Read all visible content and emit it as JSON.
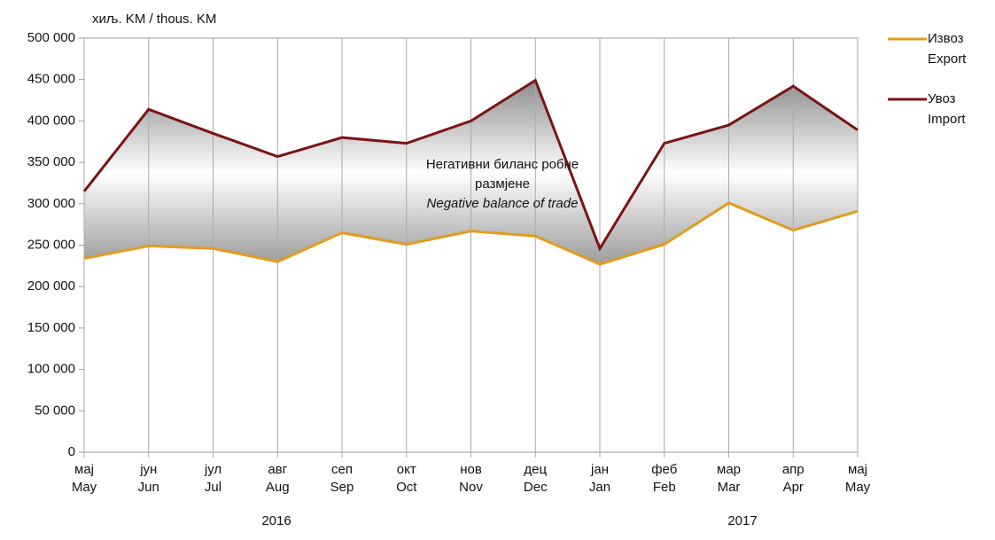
{
  "chart_data": {
    "type": "line",
    "y_unit": "хиљ. KM / thous. KM",
    "categories": [
      [
        "мај",
        "May"
      ],
      [
        "јун",
        "Jun"
      ],
      [
        "јул",
        "Jul"
      ],
      [
        "авг",
        "Aug"
      ],
      [
        "сеп",
        "Sep"
      ],
      [
        "окт",
        "Oct"
      ],
      [
        "нов",
        "Nov"
      ],
      [
        "дец",
        "Dec"
      ],
      [
        "јан",
        "Jan"
      ],
      [
        "феб",
        "Feb"
      ],
      [
        "мар",
        "Mar"
      ],
      [
        "апр",
        "Apr"
      ],
      [
        "мај",
        "May"
      ]
    ],
    "years": [
      "2016",
      "2017"
    ],
    "series": [
      {
        "name": [
          "Извоз",
          "Export"
        ],
        "color": "#e39b1e",
        "values": [
          234000,
          249000,
          246000,
          230000,
          265000,
          251000,
          267000,
          261000,
          227000,
          251000,
          301000,
          268000,
          291000
        ]
      },
      {
        "name": [
          "Увоз",
          "Import"
        ],
        "color": "#7a1414",
        "values": [
          315000,
          414000,
          385000,
          357000,
          380000,
          373000,
          400000,
          449000,
          246000,
          373000,
          395000,
          442000,
          389000
        ]
      }
    ],
    "annotation": [
      "Негативни биланс робне",
      "размјене",
      "Negative balance of trade"
    ],
    "ylim": [
      0,
      500000
    ],
    "yticks": [
      0,
      {
        "value": 50000,
        "label": "50 000"
      },
      {
        "value": 100000,
        "label": "100 000"
      },
      {
        "value": 150000,
        "label": "150 000"
      },
      {
        "value": 200000,
        "label": "200 000"
      },
      {
        "value": 250000,
        "label": "250 000"
      },
      {
        "value": 300000,
        "label": "300 000"
      },
      {
        "value": 350000,
        "label": "350 000"
      },
      {
        "value": 400000,
        "label": "400 000"
      },
      {
        "value": 450000,
        "label": "450 000"
      },
      {
        "value": 500000,
        "label": "500 000"
      }
    ],
    "legend": "right"
  }
}
